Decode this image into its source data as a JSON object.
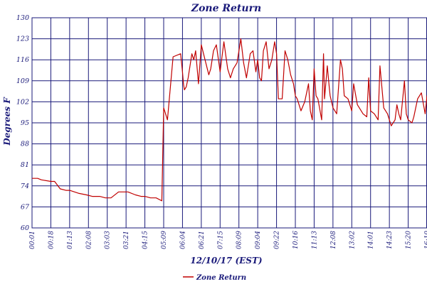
{
  "chart_data": {
    "type": "line",
    "title": "Zone Return",
    "xlabel": "12/10/17 (EST)",
    "ylabel": "Degrees F",
    "ylim": [
      60,
      130
    ],
    "ytick_labels": [
      "60",
      "67",
      "74",
      "81",
      "88",
      "95",
      "102",
      "109",
      "116",
      "123",
      "130"
    ],
    "xtick_labels": [
      "00:01",
      "00:18",
      "01:13",
      "02:08",
      "03:03",
      "03:21",
      "04:15",
      "05:09",
      "06:04",
      "06:21",
      "07:15",
      "08:09",
      "09:04",
      "09:22",
      "10:16",
      "11:13",
      "12:08",
      "13:02",
      "14:01",
      "14:23",
      "15:20",
      "16:10"
    ],
    "grid": true,
    "legend_position": "bottom-center",
    "colors": {
      "series": "#c00000",
      "grid": "#1a1a7a",
      "text": "#1a1a7a"
    },
    "series": [
      {
        "name": "Zone Return",
        "x": [
          0,
          0.3,
          0.5,
          1.0,
          1.2,
          1.5,
          1.8,
          2.0,
          2.5,
          2.9,
          3.2,
          3.6,
          3.9,
          4.2,
          4.6,
          4.9,
          5.1,
          5.5,
          5.8,
          6.0,
          6.3,
          6.6,
          6.9,
          7.0,
          7.2,
          7.5,
          7.9,
          8.0,
          8.05,
          8.1,
          8.2,
          8.3,
          8.5,
          8.6,
          8.7,
          8.85,
          9.0,
          9.2,
          9.4,
          9.5,
          9.65,
          9.8,
          10.0,
          10.2,
          10.4,
          10.55,
          10.7,
          10.9,
          11.1,
          11.25,
          11.4,
          11.6,
          11.75,
          11.9,
          12.0,
          12.1,
          12.2,
          12.3,
          12.45,
          12.6,
          12.75,
          12.9,
          13.0,
          13.1,
          13.3,
          13.45,
          13.6,
          13.75,
          13.9,
          14.0,
          14.1,
          14.3,
          14.5,
          14.7,
          14.8,
          14.9,
          15.0,
          15.1,
          15.2,
          15.4,
          15.5,
          15.55,
          15.7,
          15.8,
          15.85,
          16.0,
          16.1,
          16.2,
          16.4,
          16.5,
          16.6,
          16.8,
          17.0,
          17.1,
          17.3,
          17.5,
          17.6,
          17.8,
          17.9,
          18.0,
          18.2,
          18.4,
          18.5,
          18.7,
          18.9,
          19.0,
          19.1,
          19.3,
          19.4,
          19.5,
          19.6,
          19.8,
          19.9,
          20.0,
          20.2,
          20.3,
          20.5,
          20.7,
          20.9,
          21.0,
          21.1,
          21.2,
          21.4,
          21.6,
          21.8,
          21.9,
          22.0
        ],
        "values": [
          76.5,
          76.5,
          76,
          75.5,
          75.5,
          73,
          72.5,
          72.5,
          71.5,
          71,
          70.5,
          70.5,
          70,
          70,
          72,
          72,
          72,
          71,
          70.5,
          70.5,
          70,
          70,
          69,
          100,
          96,
          117,
          118,
          112,
          108,
          106,
          107,
          110,
          118,
          116,
          119,
          108,
          121,
          116,
          111,
          113,
          119,
          121,
          112,
          122,
          113,
          110,
          113,
          115,
          123,
          115,
          110,
          118,
          119,
          112,
          116,
          110,
          109,
          119,
          122,
          113,
          116,
          122,
          118,
          103,
          103,
          119,
          116,
          111,
          108,
          104,
          103,
          99,
          102,
          108,
          99,
          96,
          113,
          104,
          103,
          96,
          118,
          103,
          114,
          107,
          104,
          100,
          99,
          98,
          116,
          113,
          104,
          103,
          99,
          108,
          101,
          99,
          98,
          97,
          110,
          99,
          98,
          96,
          114,
          100,
          98,
          96,
          94,
          96,
          101,
          98,
          96,
          109,
          98,
          96,
          95,
          97,
          103,
          105,
          98,
          104,
          97,
          97,
          99,
          96,
          95,
          102,
          97
        ],
        "line_color": "#c00000"
      }
    ]
  }
}
